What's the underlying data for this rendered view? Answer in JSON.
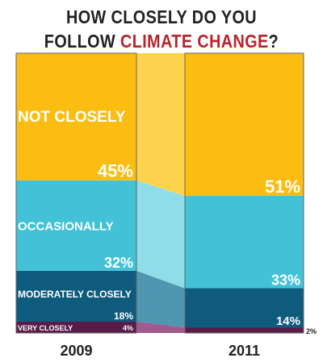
{
  "title": {
    "prefix": "HOW CLOSELY DO YOU",
    "line2_prefix": "FOLLOW ",
    "highlight": "CLIMATE CHANGE",
    "suffix": "?"
  },
  "chart_data": {
    "type": "bar",
    "stacked": true,
    "categories": [
      "2009",
      "2011"
    ],
    "ylim": [
      0,
      100
    ],
    "series": [
      {
        "name": "VERY CLOSELY",
        "values": [
          4,
          2
        ],
        "color": "#5a1a4a",
        "labels": [
          "4%",
          "2%"
        ]
      },
      {
        "name": "MODERATELY CLOSELY",
        "values": [
          18,
          14
        ],
        "color": "#0e5b7e",
        "labels": [
          "18%",
          "14%"
        ]
      },
      {
        "name": "OCCASIONALLY",
        "values": [
          32,
          33
        ],
        "color": "#43c1d6",
        "labels": [
          "32%",
          "33%"
        ]
      },
      {
        "name": "NOT CLOSELY",
        "values": [
          45,
          51
        ],
        "color": "#fbbd12",
        "labels": [
          "45%",
          "51%"
        ]
      }
    ],
    "connector_colors": [
      "#a05a8e",
      "#4f97b1",
      "#8fdde8",
      "#fdd34e"
    ],
    "title_highlight_color": "#b7252c"
  }
}
